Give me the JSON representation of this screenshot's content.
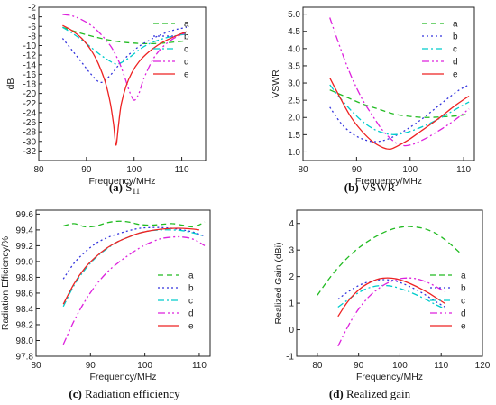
{
  "colors": {
    "a": "#22bb22",
    "b": "#3333dd",
    "c": "#00cccc",
    "d": "#dd22dd",
    "e": "#ee2222"
  },
  "chart_data": [
    {
      "id": "s11",
      "type": "line",
      "caption_label": "(a)",
      "caption_text": "S",
      "caption_sub": "11",
      "xlabel": "Frequency/MHz",
      "ylabel": "dB",
      "xlim": [
        80,
        115
      ],
      "ylim": [
        -34,
        -2
      ],
      "xticks": [
        80,
        90,
        100,
        110
      ],
      "yticks": [
        -32,
        -30,
        -28,
        -26,
        -24,
        -22,
        -20,
        -18,
        -16,
        -14,
        -12,
        -10,
        -8,
        -6,
        -4,
        -2
      ],
      "legend": [
        "a",
        "b",
        "c",
        "d",
        "e"
      ],
      "series": [
        {
          "name": "a",
          "x": [
            85,
            88,
            91,
            94,
            97,
            100,
            103,
            106,
            109,
            111
          ],
          "y": [
            -6.2,
            -7.2,
            -8.0,
            -8.7,
            -9.2,
            -9.5,
            -9.6,
            -9.5,
            -9.2,
            -9.0
          ]
        },
        {
          "name": "b",
          "x": [
            85,
            87,
            89,
            91,
            93,
            95,
            97,
            99,
            101,
            103,
            105,
            107,
            109,
            111
          ],
          "y": [
            -8.5,
            -11,
            -13.5,
            -16,
            -17.7,
            -16.2,
            -13.8,
            -11.8,
            -10.2,
            -9.0,
            -8.0,
            -7.2,
            -6.6,
            -6.2
          ]
        },
        {
          "name": "c",
          "x": [
            85,
            87,
            89,
            91,
            93,
            95,
            96,
            97,
            99,
            101,
            103,
            105,
            107,
            109,
            111
          ],
          "y": [
            -6.2,
            -7.4,
            -8.8,
            -10.4,
            -12.0,
            -13.3,
            -13.8,
            -13.7,
            -12.5,
            -10.9,
            -9.7,
            -8.9,
            -8.3,
            -7.9,
            -7.6
          ]
        },
        {
          "name": "d",
          "x": [
            85,
            87,
            89,
            91,
            93,
            95,
            96,
            97,
            98,
            99,
            100,
            101,
            102,
            104,
            106,
            108,
            110,
            111
          ],
          "y": [
            -3.5,
            -3.8,
            -4.6,
            -5.8,
            -7.6,
            -10.0,
            -11.7,
            -13.8,
            -16.5,
            -19.5,
            -21.4,
            -20.0,
            -17.0,
            -12.8,
            -10.3,
            -8.7,
            -7.7,
            -7.4
          ]
        },
        {
          "name": "e",
          "x": [
            85,
            87,
            89,
            91,
            92.5,
            94,
            95,
            95.7,
            96.2,
            96.7,
            97.3,
            98.3,
            99.5,
            101,
            103,
            105,
            107,
            109,
            111
          ],
          "y": [
            -5.8,
            -6.9,
            -8.5,
            -11.0,
            -13.8,
            -17.8,
            -22.0,
            -26.5,
            -30.8,
            -26.8,
            -22.3,
            -18.5,
            -15.7,
            -13.4,
            -11.4,
            -9.9,
            -8.8,
            -7.9,
            -7.1
          ]
        }
      ]
    },
    {
      "id": "vswr",
      "type": "line",
      "caption_label": "(b)",
      "caption_text": "VSWR",
      "xlabel": "Frequency/MHz",
      "ylabel": "VSWR",
      "xlim": [
        80,
        112
      ],
      "ylim": [
        0.75,
        5.2
      ],
      "xticks": [
        80,
        90,
        100,
        110
      ],
      "yticks": [
        1.0,
        1.5,
        2.0,
        2.5,
        3.0,
        3.5,
        4.0,
        4.5,
        5.0
      ],
      "legend": [
        "a",
        "b",
        "c",
        "d",
        "e"
      ],
      "series": [
        {
          "name": "a",
          "x": [
            85,
            88,
            91,
            94,
            97,
            100,
            103,
            106,
            109,
            111
          ],
          "y": [
            2.8,
            2.6,
            2.4,
            2.25,
            2.1,
            2.03,
            2.0,
            2.02,
            2.05,
            2.1
          ]
        },
        {
          "name": "b",
          "x": [
            85,
            87,
            89,
            91,
            93,
            95,
            97,
            99,
            101,
            103,
            105,
            107,
            109,
            111
          ],
          "y": [
            2.3,
            1.85,
            1.55,
            1.38,
            1.3,
            1.33,
            1.45,
            1.62,
            1.82,
            2.05,
            2.3,
            2.55,
            2.78,
            2.95
          ]
        },
        {
          "name": "c",
          "x": [
            85,
            87,
            89,
            91,
            93,
            95,
            97,
            99,
            101,
            103,
            105,
            107,
            109,
            111
          ],
          "y": [
            2.95,
            2.55,
            2.2,
            1.9,
            1.68,
            1.55,
            1.5,
            1.55,
            1.65,
            1.78,
            1.93,
            2.1,
            2.28,
            2.45
          ]
        },
        {
          "name": "d",
          "x": [
            85,
            87,
            89,
            91,
            93,
            95,
            97,
            98,
            99,
            100,
            101,
            103,
            105,
            107,
            109,
            111
          ],
          "y": [
            4.9,
            4.0,
            3.2,
            2.55,
            2.05,
            1.6,
            1.3,
            1.22,
            1.18,
            1.2,
            1.25,
            1.4,
            1.58,
            1.78,
            2.0,
            2.25
          ]
        },
        {
          "name": "e",
          "x": [
            85,
            87,
            89,
            91,
            93,
            95,
            96.2,
            97,
            98,
            100,
            102,
            104,
            106,
            108,
            110,
            111
          ],
          "y": [
            3.15,
            2.55,
            2.0,
            1.6,
            1.3,
            1.12,
            1.08,
            1.12,
            1.2,
            1.38,
            1.6,
            1.82,
            2.05,
            2.3,
            2.52,
            2.62
          ]
        }
      ]
    },
    {
      "id": "eff",
      "type": "line",
      "caption_label": "(c)",
      "caption_text": "Radiation efficiency",
      "xlabel": "Frequency/MHz",
      "ylabel": "Radiation Efficiency/%",
      "xlim": [
        80,
        112
      ],
      "ylim": [
        97.8,
        99.65
      ],
      "xticks": [
        80,
        90,
        100,
        110
      ],
      "yticks": [
        97.8,
        98.0,
        98.2,
        98.4,
        98.6,
        98.8,
        99.0,
        99.2,
        99.4,
        99.6
      ],
      "legend": [
        "a",
        "b",
        "c",
        "d",
        "e"
      ],
      "series": [
        {
          "name": "a",
          "x": [
            85,
            87,
            89,
            91,
            93,
            95,
            97,
            99,
            101,
            103,
            105,
            107,
            109,
            111
          ],
          "y": [
            99.45,
            99.48,
            99.44,
            99.45,
            99.49,
            99.51,
            99.5,
            99.47,
            99.46,
            99.47,
            99.48,
            99.46,
            99.44,
            99.5
          ]
        },
        {
          "name": "b",
          "x": [
            85,
            87,
            89,
            91,
            93,
            95,
            97,
            99,
            101,
            103,
            105,
            107,
            109,
            111
          ],
          "y": [
            98.78,
            98.98,
            99.12,
            99.23,
            99.3,
            99.35,
            99.39,
            99.42,
            99.43,
            99.43,
            99.42,
            99.4,
            99.37,
            99.32
          ]
        },
        {
          "name": "c",
          "x": [
            85,
            87,
            89,
            91,
            93,
            95,
            97,
            99,
            101,
            103,
            105,
            107,
            109,
            111
          ],
          "y": [
            98.43,
            98.7,
            98.9,
            99.05,
            99.16,
            99.25,
            99.31,
            99.36,
            99.39,
            99.4,
            99.4,
            99.39,
            99.36,
            99.32
          ]
        },
        {
          "name": "d",
          "x": [
            85,
            87,
            89,
            91,
            93,
            95,
            97,
            99,
            101,
            103,
            105,
            107,
            109,
            111
          ],
          "y": [
            97.95,
            98.25,
            98.5,
            98.7,
            98.86,
            98.98,
            99.08,
            99.17,
            99.24,
            99.29,
            99.31,
            99.31,
            99.28,
            99.2
          ]
        },
        {
          "name": "e",
          "x": [
            85,
            87,
            89,
            91,
            93,
            95,
            97,
            99,
            101,
            103,
            105,
            107,
            109,
            110
          ],
          "y": [
            98.46,
            98.72,
            98.92,
            99.06,
            99.17,
            99.25,
            99.31,
            99.36,
            99.39,
            99.41,
            99.42,
            99.42,
            99.41,
            99.4
          ]
        }
      ]
    },
    {
      "id": "gain",
      "type": "line",
      "caption_label": "(d)",
      "caption_text": "Realized gain",
      "xlabel": "Frequency/MHz",
      "ylabel": "Realized Gain (dBi)",
      "xlim": [
        75,
        120
      ],
      "ylim": [
        -1,
        4.5
      ],
      "xticks": [
        80,
        90,
        100,
        110,
        120
      ],
      "yticks": [
        -1,
        0,
        1,
        2,
        3,
        4
      ],
      "legend": [
        "a",
        "b",
        "c",
        "d",
        "e"
      ],
      "series": [
        {
          "name": "a",
          "x": [
            80,
            83,
            86,
            89,
            92,
            95,
            98,
            101,
            103,
            106,
            109,
            112,
            114.5
          ],
          "y": [
            1.3,
            1.95,
            2.5,
            2.95,
            3.3,
            3.58,
            3.78,
            3.88,
            3.88,
            3.8,
            3.6,
            3.25,
            2.9
          ]
        },
        {
          "name": "b",
          "x": [
            85,
            87,
            89,
            91,
            93,
            95,
            97,
            99,
            101,
            103,
            105,
            107,
            109,
            111
          ],
          "y": [
            1.15,
            1.38,
            1.58,
            1.73,
            1.83,
            1.88,
            1.88,
            1.83,
            1.72,
            1.58,
            1.42,
            1.23,
            1.03,
            0.85
          ]
        },
        {
          "name": "c",
          "x": [
            85,
            87,
            89,
            91,
            93,
            95,
            97,
            99,
            101,
            103,
            105,
            107,
            109,
            111
          ],
          "y": [
            0.85,
            1.08,
            1.3,
            1.48,
            1.6,
            1.66,
            1.66,
            1.6,
            1.5,
            1.38,
            1.24,
            1.08,
            0.92,
            0.78
          ]
        },
        {
          "name": "d",
          "x": [
            85,
            87,
            89,
            91,
            93,
            95,
            97,
            99,
            101,
            103,
            105,
            107,
            109,
            111
          ],
          "y": [
            -0.62,
            0.0,
            0.55,
            0.98,
            1.32,
            1.57,
            1.76,
            1.88,
            1.94,
            1.94,
            1.88,
            1.76,
            1.6,
            1.42
          ]
        },
        {
          "name": "e",
          "x": [
            85,
            87,
            89,
            91,
            93,
            95,
            97,
            99,
            101,
            103,
            105,
            107,
            109,
            111
          ],
          "y": [
            0.5,
            0.98,
            1.35,
            1.62,
            1.8,
            1.92,
            1.95,
            1.92,
            1.83,
            1.7,
            1.55,
            1.38,
            1.18,
            0.98
          ]
        }
      ]
    }
  ]
}
